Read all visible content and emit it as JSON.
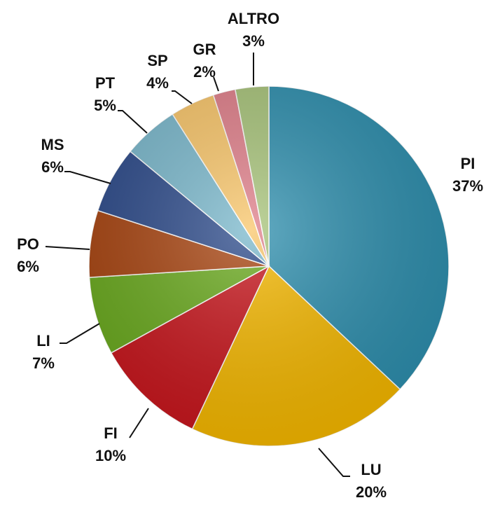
{
  "chart_data": {
    "type": "pie",
    "categories": [
      "PI",
      "LU",
      "FI",
      "LI",
      "PO",
      "MS",
      "PT",
      "SP",
      "GR",
      "ALTRO"
    ],
    "values": [
      37,
      20,
      10,
      7,
      6,
      6,
      5,
      4,
      2,
      3
    ],
    "value_labels": [
      "37%",
      "20%",
      "10%",
      "7%",
      "6%",
      "6%",
      "5%",
      "4%",
      "2%",
      "3%"
    ],
    "colors": [
      "#2e8fae",
      "#f5b800",
      "#c8161d",
      "#6aaa1e",
      "#a84410",
      "#2c4a8a",
      "#7ab8cc",
      "#f9c66a",
      "#e07f8a",
      "#a8c47a"
    ]
  }
}
